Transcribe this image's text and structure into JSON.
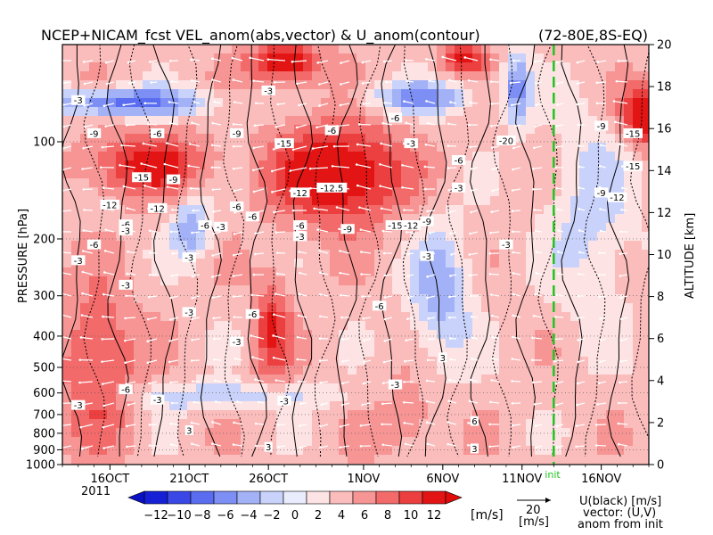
{
  "chart_data": {
    "type": "heatmap",
    "title": "NCEP+NICAM_fcst VEL_anom(abs,vector) & U_anom(contour)",
    "region": "(72-80E,8S-EQ)",
    "ylabel_left": "PRESSURE [hPa]",
    "ylabel_right": "ALTITUDE [km]",
    "year_label": "2011",
    "x_ticks": [
      "16OCT",
      "21OCT",
      "26OCT",
      "1NOV",
      "6NOV",
      "11NOV",
      "16NOV"
    ],
    "x_range": [
      "2011-10-13",
      "2011-11-19"
    ],
    "init_date": "2011-11-13",
    "init_label": "init",
    "pressure_ticks": [
      100,
      200,
      300,
      400,
      500,
      600,
      700,
      800,
      900,
      1000
    ],
    "pressure_range_hpa": [
      1000,
      50
    ],
    "pressure_scale": "log",
    "altitude_ticks": [
      0,
      2,
      4,
      6,
      8,
      10,
      12,
      14,
      16,
      18,
      20
    ],
    "colorbar": {
      "levels": [
        -12,
        -10,
        -8,
        -6,
        -4,
        -2,
        0,
        2,
        4,
        6,
        8,
        10,
        12
      ],
      "tick_labels": [
        "−12",
        "−10",
        "−8",
        "−6",
        "−4",
        "−2",
        "0",
        "2",
        "4",
        "6",
        "8",
        "10",
        "12"
      ],
      "unit": "[m/s]",
      "colors": [
        "#1520d6",
        "#3a48e6",
        "#5a6cf0",
        "#7d8ff5",
        "#a3b2f7",
        "#c9d2fa",
        "#e9ecfd",
        "#fde3e3",
        "#fbbcbc",
        "#f79494",
        "#f26a6a",
        "#ec3f3f",
        "#e21414"
      ]
    },
    "vector_reference": {
      "value": "20",
      "unit": "[m/s]"
    },
    "legend_note": [
      "U(black) [m/s]",
      "vector: (U,V)",
      "anom from init"
    ],
    "contour_labels": [
      {
        "date": "2011-10-14",
        "p": 75,
        "text": "-3"
      },
      {
        "date": "2011-10-15",
        "p": 95,
        "text": "-9"
      },
      {
        "date": "2011-10-24",
        "p": 95,
        "text": "-9"
      },
      {
        "date": "2011-10-19",
        "p": 95,
        "text": "-6"
      },
      {
        "date": "2011-10-30",
        "p": 93,
        "text": "-6"
      },
      {
        "date": "2011-11-03",
        "p": 85,
        "text": "-6"
      },
      {
        "date": "2011-10-26",
        "p": 70,
        "text": "-3"
      },
      {
        "date": "2011-10-27",
        "p": 102,
        "text": "-15"
      },
      {
        "date": "2011-10-18",
        "p": 130,
        "text": "-15"
      },
      {
        "date": "2011-10-20",
        "p": 132,
        "text": "-9"
      },
      {
        "date": "2011-11-04",
        "p": 102,
        "text": "-3"
      },
      {
        "date": "2011-11-07",
        "p": 115,
        "text": "-6"
      },
      {
        "date": "2011-10-16",
        "p": 158,
        "text": "-12"
      },
      {
        "date": "2011-10-19",
        "p": 162,
        "text": "-12"
      },
      {
        "date": "2011-10-24",
        "p": 160,
        "text": "-6"
      },
      {
        "date": "2011-10-28",
        "p": 145,
        "text": "-12"
      },
      {
        "date": "2011-10-30",
        "p": 140,
        "text": "-12.5"
      },
      {
        "date": "2011-10-25",
        "p": 172,
        "text": "-6"
      },
      {
        "date": "2011-10-28",
        "p": 183,
        "text": "-6"
      },
      {
        "date": "2011-10-31",
        "p": 188,
        "text": "-9"
      },
      {
        "date": "2011-11-03",
        "p": 183,
        "text": "-15"
      },
      {
        "date": "2011-11-04",
        "p": 183,
        "text": "-12"
      },
      {
        "date": "2011-11-05",
        "p": 178,
        "text": "-9"
      },
      {
        "date": "2011-10-17",
        "p": 182,
        "text": "-6"
      },
      {
        "date": "2011-10-17",
        "p": 190,
        "text": "-3"
      },
      {
        "date": "2011-10-22",
        "p": 183,
        "text": "-6"
      },
      {
        "date": "2011-10-23",
        "p": 185,
        "text": "-3"
      },
      {
        "date": "2011-10-28",
        "p": 198,
        "text": "-3"
      },
      {
        "date": "2011-10-15",
        "p": 210,
        "text": "-6"
      },
      {
        "date": "2011-10-14",
        "p": 235,
        "text": "-3"
      },
      {
        "date": "2011-10-21",
        "p": 230,
        "text": "-3"
      },
      {
        "date": "2011-11-05",
        "p": 228,
        "text": "-3"
      },
      {
        "date": "2011-11-10",
        "p": 210,
        "text": "-3"
      },
      {
        "date": "2011-10-17",
        "p": 280,
        "text": "-3"
      },
      {
        "date": "2011-10-21",
        "p": 340,
        "text": "-3"
      },
      {
        "date": "2011-10-25",
        "p": 345,
        "text": "-6"
      },
      {
        "date": "2011-11-02",
        "p": 325,
        "text": "-6"
      },
      {
        "date": "2011-10-24",
        "p": 420,
        "text": "-3"
      },
      {
        "date": "2011-10-17",
        "p": 590,
        "text": "-6"
      },
      {
        "date": "2011-10-19",
        "p": 635,
        "text": "-3"
      },
      {
        "date": "2011-10-14",
        "p": 660,
        "text": "-3"
      },
      {
        "date": "2011-10-27",
        "p": 640,
        "text": "-3"
      },
      {
        "date": "2011-11-03",
        "p": 570,
        "text": "-3"
      },
      {
        "date": "2011-11-06",
        "p": 470,
        "text": "3"
      },
      {
        "date": "2011-11-08",
        "p": 740,
        "text": "6"
      },
      {
        "date": "2011-11-08",
        "p": 900,
        "text": "3"
      },
      {
        "date": "2011-10-26",
        "p": 890,
        "text": "3"
      },
      {
        "date": "2011-10-21",
        "p": 790,
        "text": "3"
      },
      {
        "date": "2011-11-16",
        "p": 90,
        "text": "-9"
      },
      {
        "date": "2011-11-16",
        "p": 145,
        "text": "-9"
      },
      {
        "date": "2011-11-17",
        "p": 150,
        "text": "-12"
      },
      {
        "date": "2011-11-18",
        "p": 120,
        "text": "-15"
      },
      {
        "date": "2011-11-18",
        "p": 95,
        "text": "-15"
      },
      {
        "date": "2011-11-07",
        "p": 140,
        "text": "-3"
      },
      {
        "date": "2011-11-10",
        "p": 100,
        "text": "-20"
      }
    ]
  }
}
